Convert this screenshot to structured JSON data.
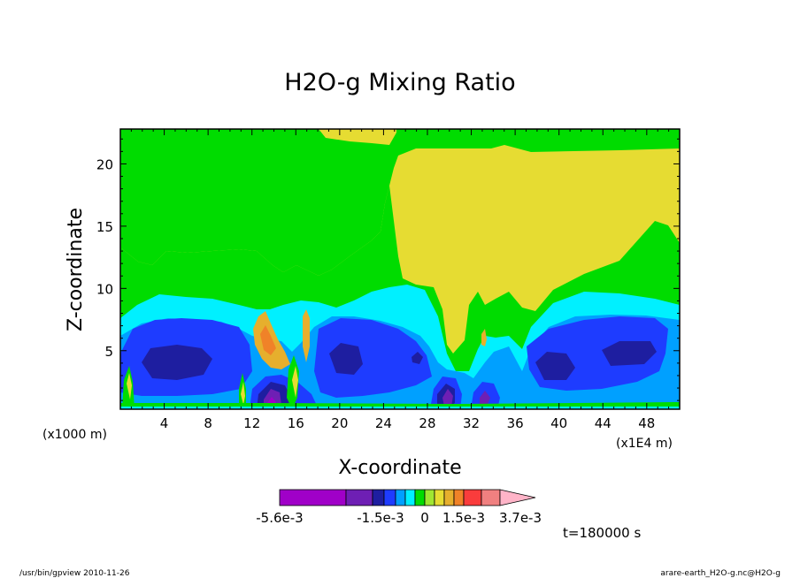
{
  "chart_data": {
    "type": "heatmap",
    "title": "H2O-g Mixing Ratio",
    "xlabel": "X-coordinate",
    "ylabel": "Z-coordinate",
    "x_unit_left": "(x1000 m)",
    "x_unit_right": "(x1E4 m)",
    "xlim": [
      0,
      51
    ],
    "ylim": [
      0.3,
      22.8
    ],
    "x_ticks": [
      4,
      8,
      12,
      16,
      20,
      24,
      28,
      32,
      36,
      40,
      44,
      48
    ],
    "x_tick_labels": [
      "4",
      "8",
      "12",
      "16",
      "20",
      "24",
      "28",
      "32",
      "36",
      "40",
      "44",
      "48"
    ],
    "y_ticks": [
      5,
      10,
      15,
      20
    ],
    "y_tick_labels": [
      "5",
      "10",
      "15",
      "20"
    ],
    "colorbar": {
      "colors": [
        "#a000c8",
        "#6e1fb4",
        "#1e1ea0",
        "#1e3cff",
        "#00a0ff",
        "#00f0ff",
        "#00dc00",
        "#a0e632",
        "#e6dc32",
        "#e6af2d",
        "#f08228",
        "#fa3c3c",
        "#f08080",
        "#ffb4c8"
      ],
      "labels": [
        "-5.6e-3",
        "-1.5e-3",
        "0",
        "1.5e-3",
        "3.7e-3"
      ]
    },
    "time_label": "t=180000 s",
    "footer_left": "/usr/bin/gpview  2010-11-26",
    "footer_right": "arare-earth_H2O-g.nc@H2O-g"
  }
}
